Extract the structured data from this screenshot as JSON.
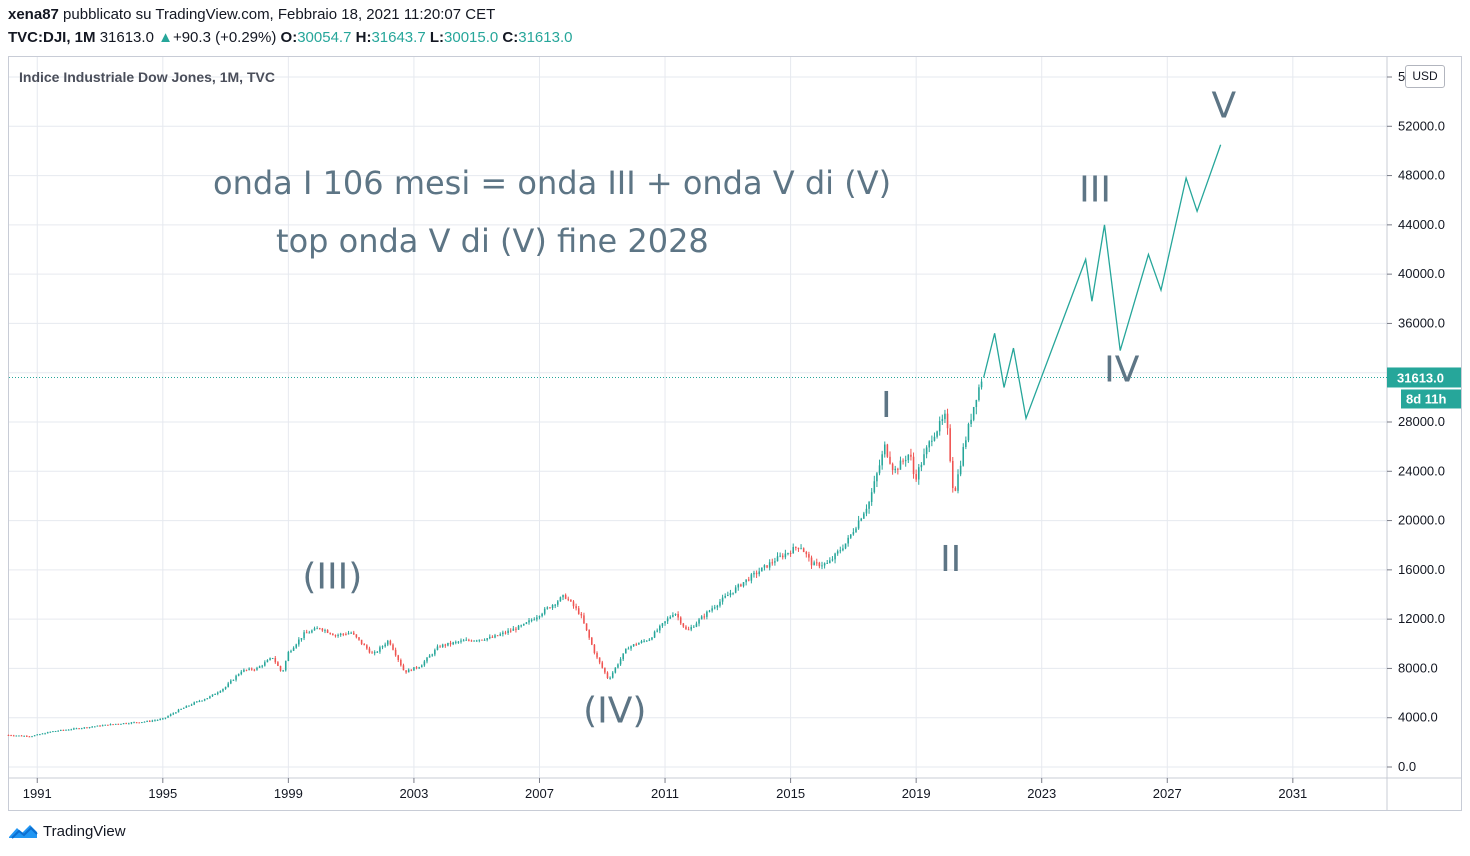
{
  "header": {
    "author": "xena87",
    "published_text": "pubblicato su TradingView.com, Febbraio 18, 2021 11:20:07 CET",
    "symbol": "TVC:DJI, 1M",
    "last": "31613.0",
    "change": "+90.3 (+0.29%)",
    "open_label": "O:",
    "open": "30054.7",
    "high_label": "H:",
    "high": "31643.7",
    "low_label": "L:",
    "low": "30015.0",
    "close_label": "C:",
    "close": "31613.0"
  },
  "footer": {
    "brand": "TradingView"
  },
  "colors": {
    "up": "#26a69a",
    "down": "#ef5350",
    "projection": "#26a69a",
    "annotation": "#5d7585",
    "grid": "#e6e9ef"
  },
  "chart_data": {
    "type": "candlestick",
    "title": "Indice Industriale Dow Jones, 1M, TVC",
    "currency": "USD",
    "x_ticks": [
      "1991",
      "1995",
      "1999",
      "2003",
      "2007",
      "2011",
      "2015",
      "2019",
      "2023",
      "2027",
      "2031"
    ],
    "y_ticks": [
      "0.0",
      "4000.0",
      "8000.0",
      "12000.0",
      "16000.0",
      "20000.0",
      "24000.0",
      "28000.0",
      "32000.0",
      "36000.0",
      "40000.0",
      "44000.0",
      "48000.0",
      "52000.0",
      "56000.0"
    ],
    "ylim": [
      0,
      56000
    ],
    "xlim": [
      1990.1,
      2034.0
    ],
    "last_price_label": "31613.0",
    "last_price": 31613.0,
    "countdown_label": "8d 11h",
    "grid": true,
    "price_path_approx": [
      [
        1990.0,
        2600
      ],
      [
        1990.8,
        2500
      ],
      [
        1991.5,
        2900
      ],
      [
        1992.5,
        3200
      ],
      [
        1993.5,
        3500
      ],
      [
        1994.5,
        3700
      ],
      [
        1995.0,
        3900
      ],
      [
        1995.5,
        4600
      ],
      [
        1996.0,
        5200
      ],
      [
        1996.5,
        5700
      ],
      [
        1997.0,
        6500
      ],
      [
        1997.5,
        7800
      ],
      [
        1998.0,
        8000
      ],
      [
        1998.5,
        8900
      ],
      [
        1998.8,
        7600
      ],
      [
        1999.0,
        9300
      ],
      [
        1999.5,
        10800
      ],
      [
        2000.0,
        11300
      ],
      [
        2000.5,
        10700
      ],
      [
        2001.0,
        10900
      ],
      [
        2001.7,
        9100
      ],
      [
        2002.2,
        10300
      ],
      [
        2002.7,
        7700
      ],
      [
        2003.2,
        8200
      ],
      [
        2003.8,
        9800
      ],
      [
        2004.5,
        10200
      ],
      [
        2005.5,
        10500
      ],
      [
        2006.5,
        11500
      ],
      [
        2007.0,
        12400
      ],
      [
        2007.8,
        13900
      ],
      [
        2008.3,
        12400
      ],
      [
        2008.8,
        9000
      ],
      [
        2009.2,
        7100
      ],
      [
        2009.8,
        9700
      ],
      [
        2010.5,
        10400
      ],
      [
        2011.3,
        12600
      ],
      [
        2011.7,
        11000
      ],
      [
        2012.5,
        12900
      ],
      [
        2013.5,
        15000
      ],
      [
        2014.5,
        16800
      ],
      [
        2015.3,
        18000
      ],
      [
        2015.7,
        16400
      ],
      [
        2016.2,
        16500
      ],
      [
        2016.8,
        18300
      ],
      [
        2017.5,
        21500
      ],
      [
        2018.0,
        26000
      ],
      [
        2018.3,
        24000
      ],
      [
        2018.8,
        25500
      ],
      [
        2018.95,
        23300
      ],
      [
        2019.5,
        26800
      ],
      [
        2019.95,
        28500
      ],
      [
        2020.2,
        22000
      ],
      [
        2020.5,
        25800
      ],
      [
        2020.9,
        30000
      ],
      [
        2021.1,
        31613
      ]
    ],
    "projection_path": [
      [
        2021.15,
        31613
      ],
      [
        2021.5,
        35200
      ],
      [
        2021.8,
        30800
      ],
      [
        2022.1,
        34000
      ],
      [
        2022.5,
        28300
      ],
      [
        2024.4,
        41200
      ],
      [
        2024.6,
        37800
      ],
      [
        2025.0,
        44000
      ],
      [
        2025.5,
        33800
      ],
      [
        2026.4,
        41600
      ],
      [
        2026.8,
        38700
      ],
      [
        2027.6,
        47800
      ],
      [
        2027.95,
        45100
      ],
      [
        2028.7,
        50500
      ]
    ],
    "annotations": [
      {
        "text": "onda I 106 mesi = onda III + onda V di (V)",
        "x": 2007.4,
        "y": 46500,
        "anchor": "middle",
        "kind": "note"
      },
      {
        "text": "top onda V di (V) fine 2028",
        "x": 2005.5,
        "y": 41800,
        "anchor": "middle",
        "kind": "note"
      },
      {
        "text": "(III)",
        "x": 2000.4,
        "y": 14500,
        "anchor": "middle",
        "kind": "label"
      },
      {
        "text": "(IV)",
        "x": 2009.4,
        "y": 3600,
        "anchor": "middle",
        "kind": "label"
      },
      {
        "text": "I",
        "x": 2018.05,
        "y": 28400,
        "anchor": "middle",
        "kind": "label"
      },
      {
        "text": "II",
        "x": 2020.1,
        "y": 15900,
        "anchor": "middle",
        "kind": "label"
      },
      {
        "text": "III",
        "x": 2024.7,
        "y": 45900,
        "anchor": "middle",
        "kind": "label"
      },
      {
        "text": "IV",
        "x": 2025.55,
        "y": 31300,
        "anchor": "middle",
        "kind": "label"
      },
      {
        "text": "V",
        "x": 2028.8,
        "y": 52700,
        "anchor": "middle",
        "kind": "label"
      }
    ]
  }
}
